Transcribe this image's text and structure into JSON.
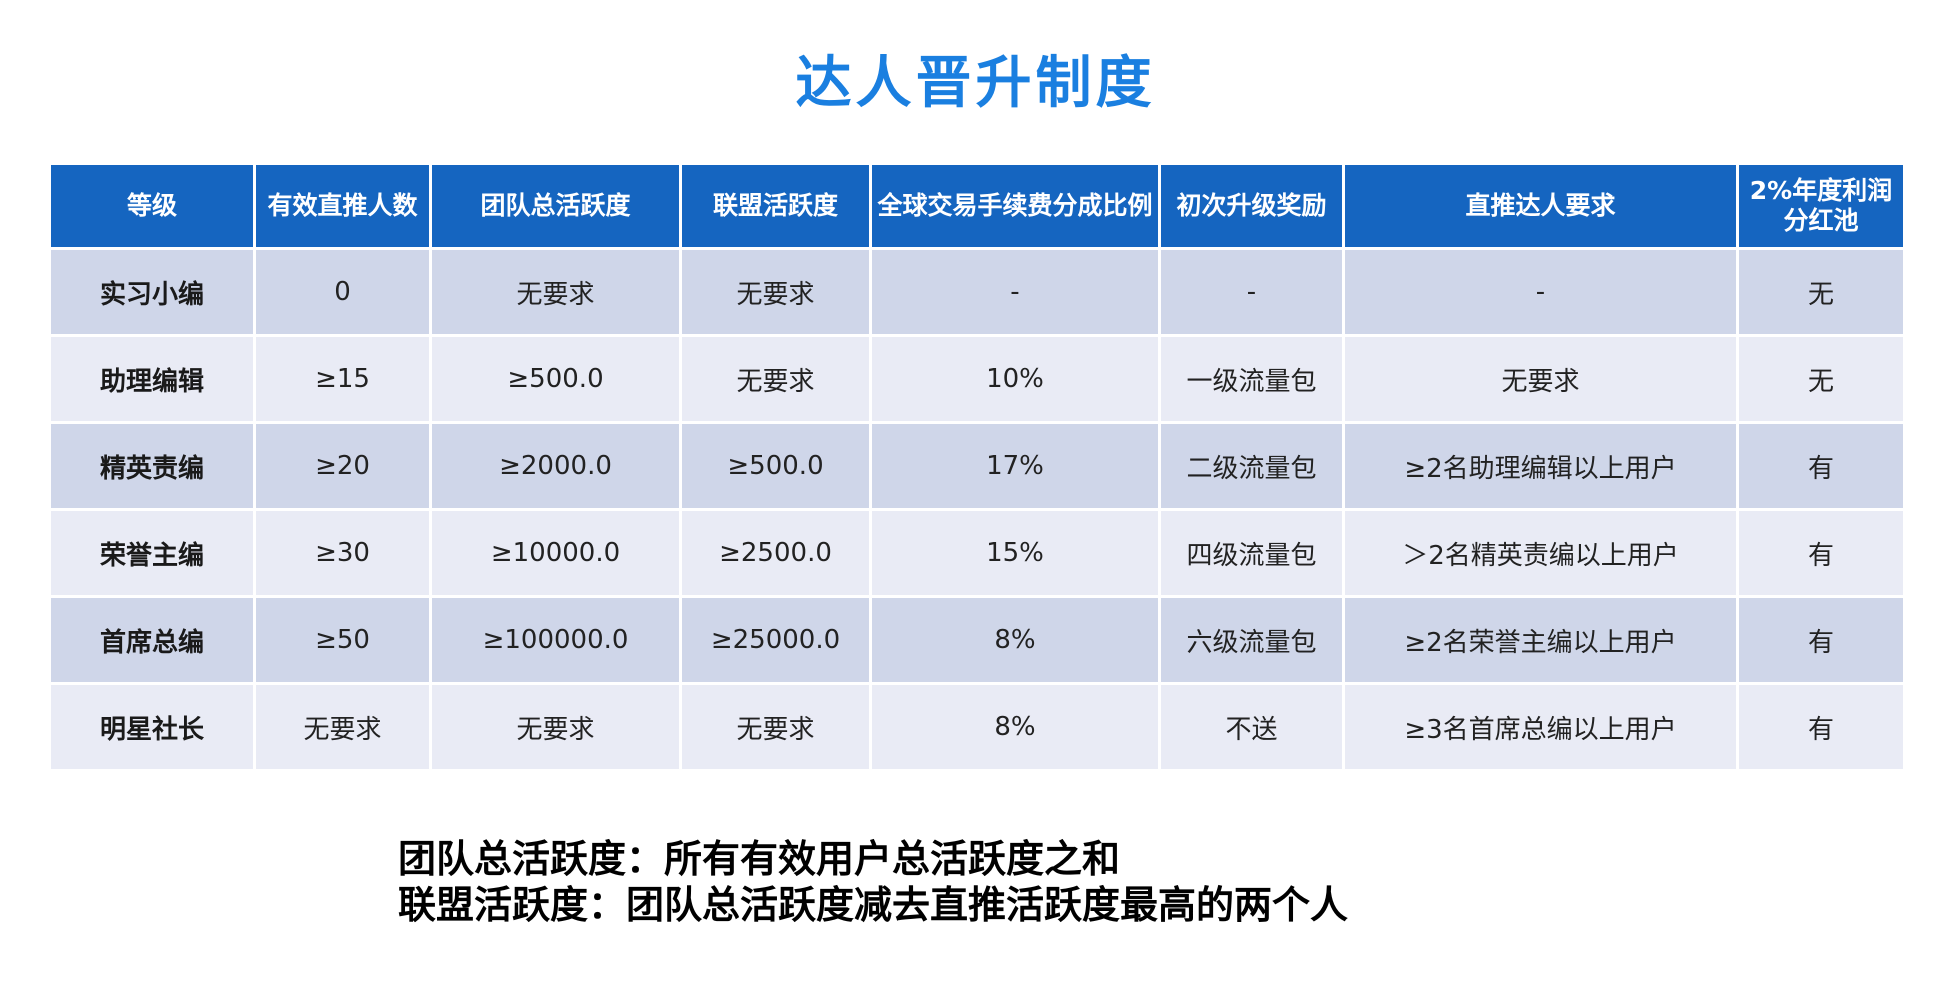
{
  "title": "达人晋升制度",
  "table": {
    "headers": [
      "等级",
      "有效直推人数",
      "团队总活跃度",
      "联盟活跃度",
      "全球交易手续费分成比例",
      "初次升级奖励",
      "直推达人要求",
      "2%年度利润分红池"
    ],
    "rows": [
      [
        "实习小编",
        "0",
        "无要求",
        "无要求",
        "-",
        "-",
        "-",
        "无"
      ],
      [
        "助理编辑",
        "≥15",
        "≥500.0",
        "无要求",
        "10%",
        "一级流量包",
        "无要求",
        "无"
      ],
      [
        "精英责编",
        "≥20",
        "≥2000.0",
        "≥500.0",
        "17%",
        "二级流量包",
        "≥2名助理编辑以上用户",
        "有"
      ],
      [
        "荣誉主编",
        "≥30",
        "≥10000.0",
        "≥2500.0",
        "15%",
        "四级流量包",
        "＞2名精英责编以上用户",
        "有"
      ],
      [
        "首席总编",
        "≥50",
        "≥100000.0",
        "≥25000.0",
        "8%",
        "六级流量包",
        "≥2名荣誉主编以上用户",
        "有"
      ],
      [
        "明星社长",
        "无要求",
        "无要求",
        "无要求",
        "8%",
        "不送",
        "≥3名首席总编以上用户",
        "有"
      ]
    ]
  },
  "notes": [
    "团队总活跃度：所有有效用户总活跃度之和",
    "联盟活跃度：团队总活跃度减去直推活跃度最高的两个人"
  ],
  "colors": {
    "title": "#1a7fe0",
    "header_bg": "#1565c0",
    "row_dark": "#cfd6e9",
    "row_light": "#e9ebf5"
  }
}
